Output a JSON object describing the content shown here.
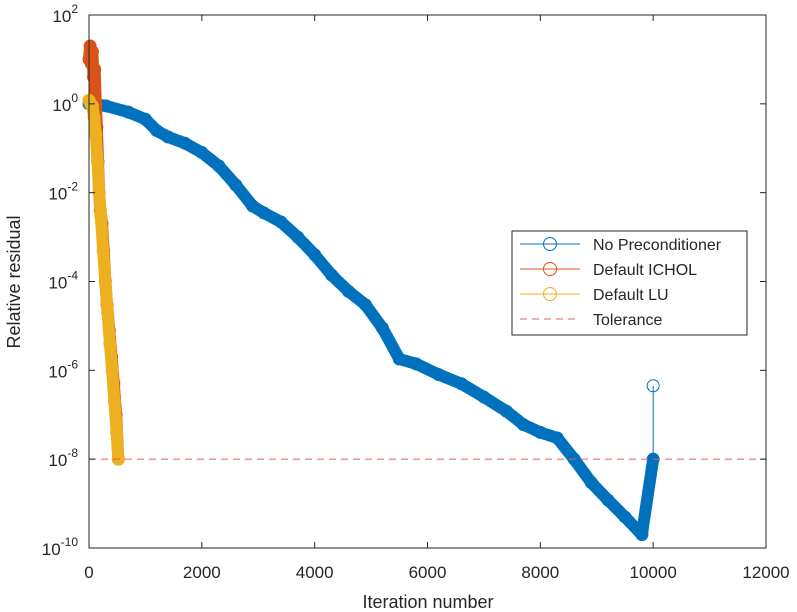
{
  "chart_data": {
    "type": "line",
    "title": "",
    "xlabel": "Iteration number",
    "ylabel": "Relative residual",
    "xlim": [
      0,
      12000
    ],
    "ylim": [
      1e-10,
      100
    ],
    "y_scale": "log",
    "grid": false,
    "legend_position": "right",
    "x_ticks": [
      {
        "value": 0,
        "label": "0"
      },
      {
        "value": 2000,
        "label": "2000"
      },
      {
        "value": 4000,
        "label": "4000"
      },
      {
        "value": 6000,
        "label": "6000"
      },
      {
        "value": 8000,
        "label": "8000"
      },
      {
        "value": 10000,
        "label": "10000"
      },
      {
        "value": 12000,
        "label": "12000"
      }
    ],
    "y_ticks": [
      {
        "value": 1e-10,
        "base": "10",
        "exp": "-10"
      },
      {
        "value": 1e-08,
        "base": "10",
        "exp": "-8"
      },
      {
        "value": 1e-06,
        "base": "10",
        "exp": "-6"
      },
      {
        "value": 0.0001,
        "base": "10",
        "exp": "-4"
      },
      {
        "value": 0.01,
        "base": "10",
        "exp": "-2"
      },
      {
        "value": 1,
        "base": "10",
        "exp": "0"
      },
      {
        "value": 100,
        "base": "10",
        "exp": "2"
      }
    ],
    "series": [
      {
        "name": "No Preconditioner",
        "color": "#0072BD",
        "marker": "circle",
        "x": [
          0,
          300,
          700,
          1000,
          1200,
          1400,
          1700,
          2000,
          2300,
          2600,
          2900,
          3100,
          3400,
          3700,
          4000,
          4300,
          4600,
          4900,
          5200,
          5500,
          5800,
          6200,
          6600,
          7000,
          7400,
          7700,
          8000,
          8300,
          8600,
          8900,
          9200,
          9500,
          9800,
          10000
        ],
        "y": [
          1.0,
          0.9,
          0.65,
          0.45,
          0.25,
          0.18,
          0.13,
          0.08,
          0.04,
          0.015,
          0.005,
          0.0035,
          0.0022,
          0.001,
          0.0004,
          0.00014,
          6e-05,
          3e-05,
          9e-06,
          1.8e-06,
          1.4e-06,
          8e-07,
          5e-07,
          2.5e-07,
          1.2e-07,
          6e-08,
          4e-08,
          3e-08,
          1e-08,
          3e-09,
          1.2e-09,
          5e-10,
          2e-10,
          1e-08
        ]
      },
      {
        "name": "Default ICHOL",
        "color": "#D95319",
        "marker": "circle",
        "x": [
          0,
          20,
          40,
          60,
          80,
          100,
          120,
          140,
          160,
          180,
          200,
          230,
          260,
          290,
          320,
          360,
          400,
          440,
          480,
          520
        ],
        "y": [
          10,
          20,
          8,
          15,
          4,
          6,
          1,
          0.3,
          0.05,
          0.01,
          0.004,
          0.002,
          0.0005,
          0.0001,
          3e-05,
          8e-06,
          2e-06,
          5e-07,
          1e-07,
          1e-08
        ]
      },
      {
        "name": "Default LU",
        "color": "#EDB120",
        "marker": "circle",
        "x": [
          0,
          30,
          60,
          90,
          120,
          150,
          180,
          210,
          250,
          290,
          330,
          370,
          410,
          450,
          490,
          520
        ],
        "y": [
          1.2,
          1.0,
          0.9,
          0.5,
          0.2,
          0.05,
          0.01,
          0.003,
          0.0005,
          0.0001,
          2e-05,
          4e-06,
          1e-06,
          2e-07,
          4e-08,
          1e-08
        ]
      },
      {
        "name": "Tolerance",
        "color": "#E0625E",
        "style": "dashed",
        "y_constant": 1e-08
      }
    ],
    "annotations": [
      {
        "type": "stem",
        "x": 10000,
        "y_from": 1e-08,
        "y_to": 4.5e-07,
        "color": "#0072BD",
        "marker": "open-circle"
      }
    ]
  }
}
